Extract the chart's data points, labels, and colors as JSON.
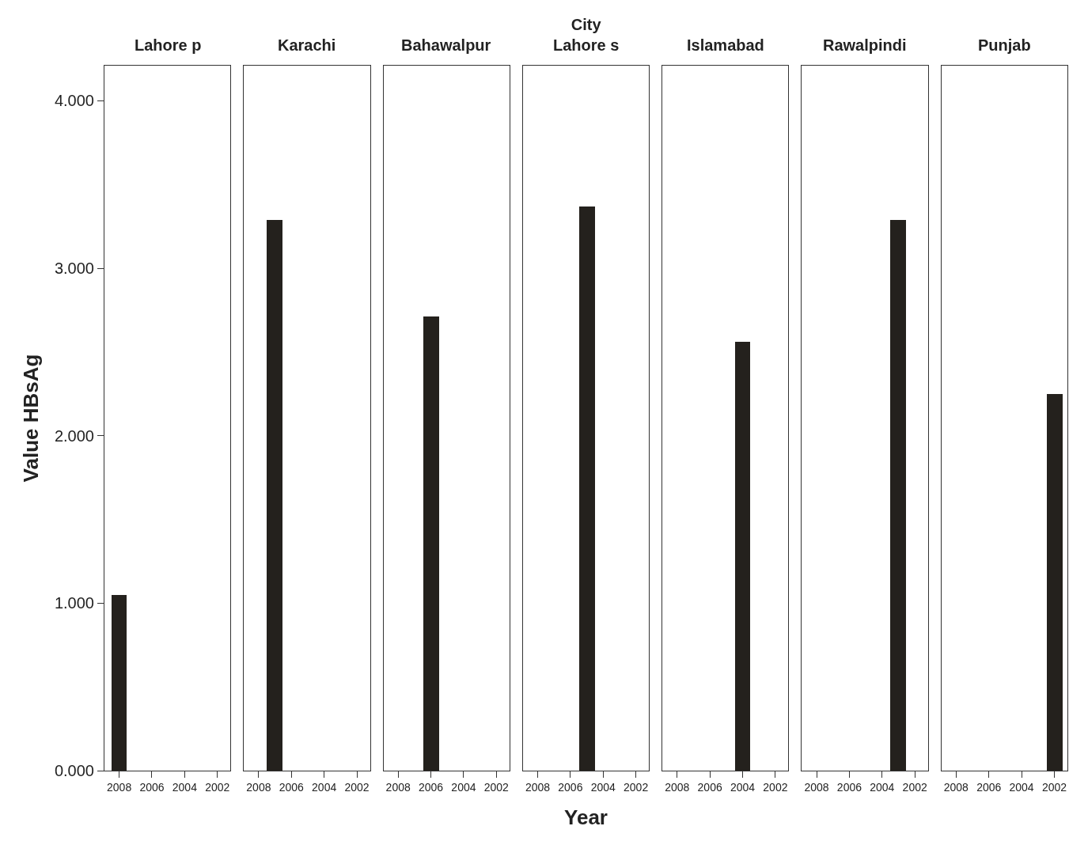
{
  "chart_data": [
    {
      "type": "bar",
      "title": "Lahore p",
      "x": [
        2008
      ],
      "values": [
        1.05
      ],
      "color": "#24211d",
      "xlim": [
        2008.9,
        2001.2
      ],
      "xticks": [
        2008,
        2006,
        2004,
        2002
      ],
      "ylim": [
        0,
        4.21
      ],
      "yticks": [
        {
          "value": 0,
          "label": "0.000"
        },
        {
          "value": 1,
          "label": "1.000"
        },
        {
          "value": 2,
          "label": "2.000"
        },
        {
          "value": 3,
          "label": "3.000"
        },
        {
          "value": 4,
          "label": "4.000"
        }
      ],
      "ylabel": "Value HBsAg"
    },
    {
      "type": "bar",
      "title": "Karachi",
      "x": [
        2007
      ],
      "values": [
        3.29
      ],
      "color": "#24211d",
      "xlim": [
        2008.9,
        2001.2
      ],
      "xticks": [
        2008,
        2006,
        2004,
        2002
      ],
      "ylim": [
        0,
        4.21
      ],
      "tick_labels": "x"
    },
    {
      "type": "bar",
      "title": "Bahawalpur",
      "x": [
        2006
      ],
      "values": [
        2.71
      ],
      "color": "#24211d",
      "xlim": [
        2008.9,
        2001.2
      ],
      "xticks": [
        2008,
        2006,
        2004,
        2002
      ],
      "ylim": [
        0,
        4.21
      ],
      "tick_labels": "x"
    },
    {
      "type": "bar",
      "title": "City\nLahore s",
      "x": [
        2005
      ],
      "values": [
        3.37
      ],
      "color": "#24211d",
      "xlim": [
        2008.9,
        2001.2
      ],
      "xticks": [
        2008,
        2006,
        2004,
        2002
      ],
      "ylim": [
        0,
        4.21
      ],
      "tick_labels": "x",
      "xlabel": "Year"
    },
    {
      "type": "bar",
      "title": "Islamabad",
      "x": [
        2004
      ],
      "values": [
        2.56
      ],
      "color": "#24211d",
      "xlim": [
        2008.9,
        2001.2
      ],
      "xticks": [
        2008,
        2006,
        2004,
        2002
      ],
      "ylim": [
        0,
        4.21
      ],
      "tick_labels": "x"
    },
    {
      "type": "bar",
      "title": "Rawalpindi",
      "x": [
        2003
      ],
      "values": [
        3.29
      ],
      "color": "#24211d",
      "xlim": [
        2008.9,
        2001.2
      ],
      "xticks": [
        2008,
        2006,
        2004,
        2002
      ],
      "ylim": [
        0,
        4.21
      ],
      "tick_labels": "x"
    },
    {
      "type": "bar",
      "title": "Punjab",
      "x": [
        2002
      ],
      "values": [
        2.25
      ],
      "color": "#24211d",
      "xlim": [
        2008.9,
        2001.2
      ],
      "xticks": [
        2008,
        2006,
        2004,
        2002
      ],
      "ylim": [
        0,
        4.21
      ],
      "tick_labels": "x"
    }
  ]
}
